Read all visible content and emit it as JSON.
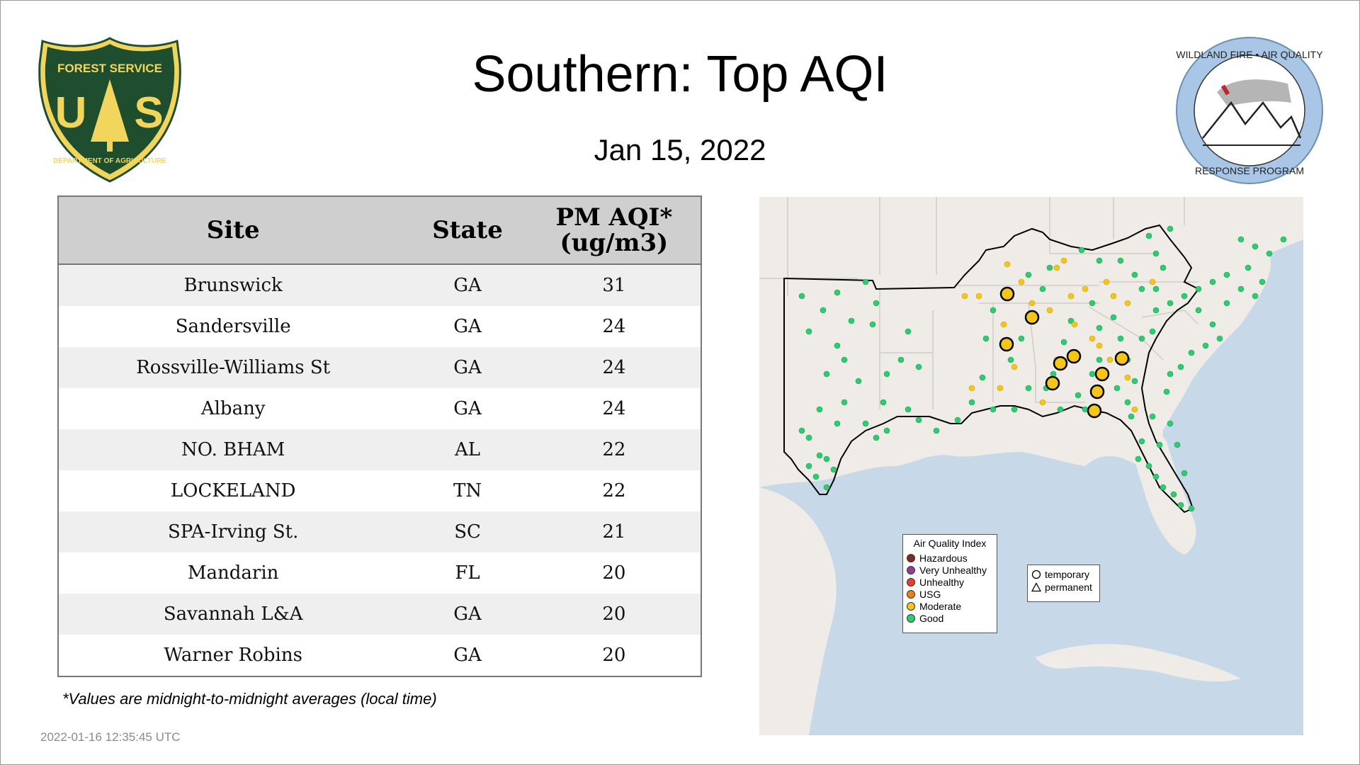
{
  "header": {
    "title": "Southern: Top AQI",
    "date": "Jan 15, 2022"
  },
  "logos": {
    "forest_service": {
      "top_text": "FOREST SERVICE",
      "letters": "U S",
      "bottom_text": "DEPARTMENT OF AGRICULTURE",
      "color": "#1f4e2f",
      "accent": "#f2d55c"
    },
    "wildland_fire": {
      "text": "WILDLAND FIRE • AIR QUALITY • RESPONSE PROGRAM",
      "ring_color": "#a9c6e6"
    }
  },
  "table": {
    "headers": {
      "site": "Site",
      "state": "State",
      "value_line1": "PM AQI*",
      "value_line2": "(ug/m3)"
    },
    "rows": [
      {
        "site": "Brunswick",
        "state": "GA",
        "value": "31"
      },
      {
        "site": "Sandersville",
        "state": "GA",
        "value": "24"
      },
      {
        "site": "Rossville-Williams St",
        "state": "GA",
        "value": "24"
      },
      {
        "site": "Albany",
        "state": "GA",
        "value": "24"
      },
      {
        "site": "NO. BHAM",
        "state": "AL",
        "value": "22"
      },
      {
        "site": "LOCKELAND",
        "state": "TN",
        "value": "22"
      },
      {
        "site": "SPA-Irving St.",
        "state": "SC",
        "value": "21"
      },
      {
        "site": "Mandarin",
        "state": "FL",
        "value": "20"
      },
      {
        "site": "Savannah L&A",
        "state": "GA",
        "value": "20"
      },
      {
        "site": "Warner Robins",
        "state": "GA",
        "value": "20"
      }
    ]
  },
  "footnote": "*Values are midnight-to-midnight averages (local time)",
  "timestamp": "2022-01-16 12:35:45 UTC",
  "map": {
    "colors": {
      "land": "#efece8",
      "water": "#c7d8e8",
      "border": "#d0d0d0",
      "region": "#000000"
    },
    "legend": {
      "title": "Air Quality Index",
      "categories": [
        {
          "label": "Hazardous",
          "color": "#7e2a2a"
        },
        {
          "label": "Very Unhealthy",
          "color": "#8f3f97"
        },
        {
          "label": "Unhealthy",
          "color": "#e8402a"
        },
        {
          "label": "USG",
          "color": "#f07d1a"
        },
        {
          "label": "Moderate",
          "color": "#f5c518"
        },
        {
          "label": "Good",
          "color": "#2ecc71"
        }
      ]
    },
    "legend_type": {
      "temporary": "temporary",
      "permanent": "permanent"
    }
  }
}
